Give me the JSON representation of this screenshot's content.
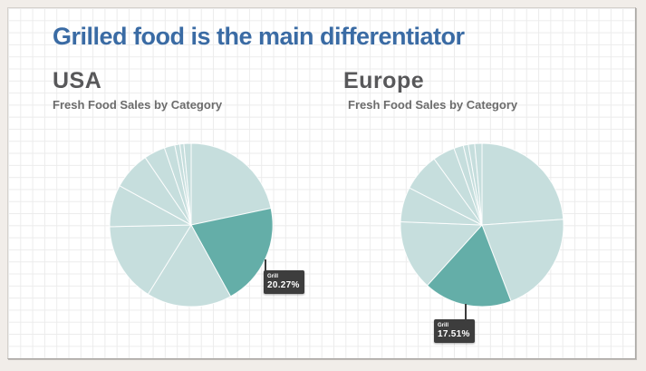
{
  "slide": {
    "title": "Grilled food is the main differentiator"
  },
  "colors": {
    "title": "#3a6ba4",
    "heading": "#58585a",
    "subtitle": "#6b6b6b",
    "pie_base": "#c6dedd",
    "pie_highlight": "#64aea8",
    "tooltip_bg": "#3d3d3d",
    "tooltip_text": "#ffffff"
  },
  "chart_data": [
    {
      "type": "pie",
      "region": "USA",
      "subtitle": "Fresh Food Sales by Category",
      "start_angle_deg": 0,
      "legend": "off",
      "segments": [
        {
          "percent": 21.7
        },
        {
          "label": "Grill",
          "percent": 20.27,
          "highlight": true
        },
        {
          "percent": 16.9
        },
        {
          "percent": 15.8
        },
        {
          "percent": 8.3
        },
        {
          "percent": 7.5
        },
        {
          "percent": 4.2
        },
        {
          "percent": 2.1
        },
        {
          "percent": 1.0
        },
        {
          "percent": 0.8
        },
        {
          "percent": 1.43
        }
      ],
      "tooltip": {
        "label": "Grill",
        "value": "20.27%"
      }
    },
    {
      "type": "pie",
      "region": "Europe",
      "subtitle": "Fresh Food Sales by Category",
      "start_angle_deg": 0,
      "legend": "off",
      "segments": [
        {
          "percent": 23.9
        },
        {
          "percent": 20.3
        },
        {
          "label": "Grill",
          "percent": 17.51,
          "highlight": true
        },
        {
          "percent": 13.9
        },
        {
          "percent": 6.9
        },
        {
          "percent": 7.5
        },
        {
          "percent": 4.4
        },
        {
          "percent": 1.9
        },
        {
          "percent": 1.0
        },
        {
          "percent": 1.25
        },
        {
          "percent": 1.44
        }
      ],
      "tooltip": {
        "label": "Grill",
        "value": "17.51%"
      }
    }
  ]
}
